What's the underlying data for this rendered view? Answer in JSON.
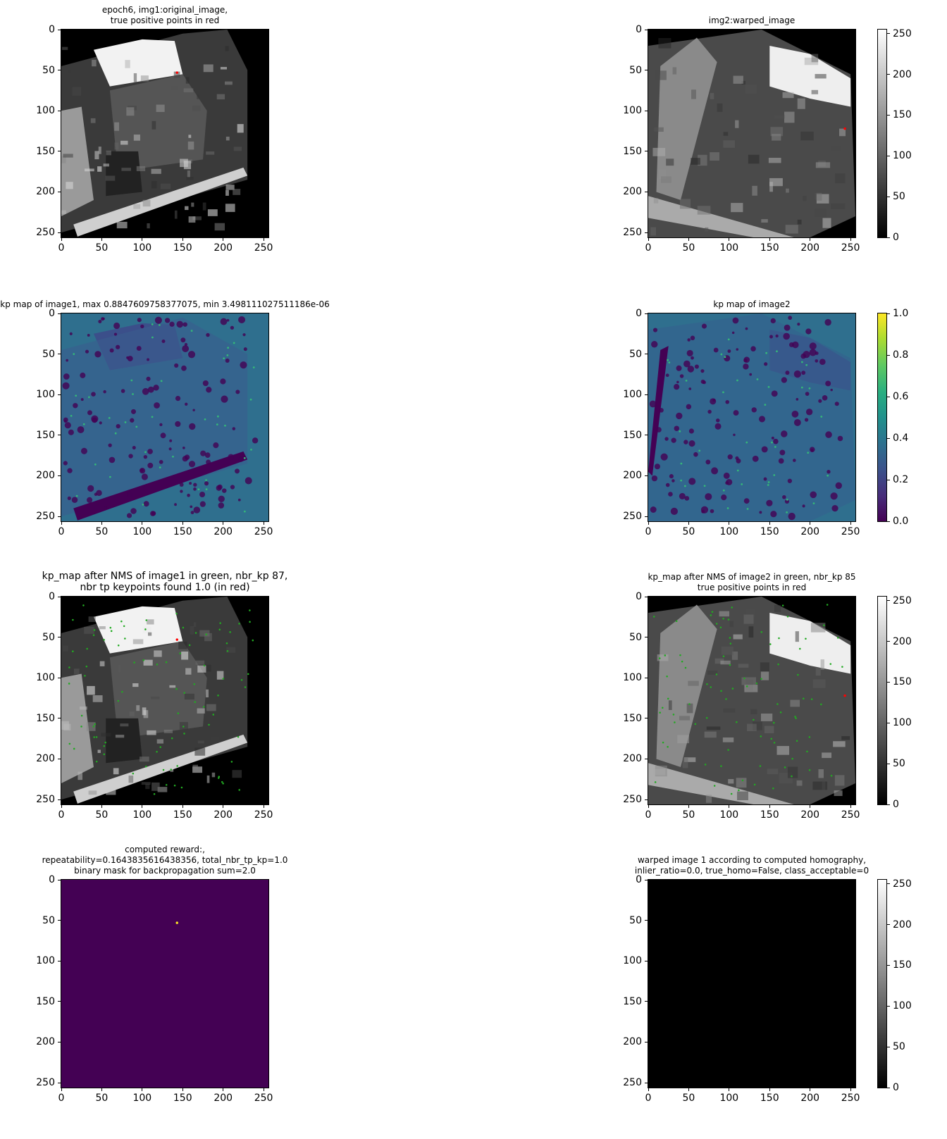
{
  "chart_data": [
    {
      "type": "heatmap",
      "title": "epoch6, img1:original_image,\n true positive points in red",
      "xticks": [
        "0",
        "50",
        "100",
        "150",
        "200",
        "250"
      ],
      "yticks": [
        "0",
        "50",
        "100",
        "150",
        "200",
        "250"
      ],
      "xlim": [
        0,
        256
      ],
      "ylim": [
        256,
        0
      ],
      "colormap": "gray",
      "points": [
        {
          "x": 143,
          "y": 53,
          "color": "#ff0000"
        }
      ]
    },
    {
      "type": "heatmap",
      "title": "img2:warped_image",
      "xticks": [
        "0",
        "50",
        "100",
        "150",
        "200",
        "250"
      ],
      "yticks": [
        "0",
        "50",
        "100",
        "150",
        "200",
        "250"
      ],
      "xlim": [
        0,
        256
      ],
      "ylim": [
        256,
        0
      ],
      "colormap": "gray",
      "colorbar": {
        "ticks": [
          "0",
          "50",
          "100",
          "150",
          "200",
          "250"
        ],
        "range": [
          0,
          255
        ]
      },
      "points": [
        {
          "x": 243,
          "y": 122,
          "color": "#ff0000"
        }
      ]
    },
    {
      "type": "heatmap",
      "title": "kp map of image1, max 0.8847609758377075, min 3.498111027511186e-06",
      "xticks": [
        "0",
        "50",
        "100",
        "150",
        "200",
        "250"
      ],
      "yticks": [
        "0",
        "50",
        "100",
        "150",
        "200",
        "250"
      ],
      "xlim": [
        0,
        256
      ],
      "ylim": [
        256,
        0
      ],
      "colormap": "viridis"
    },
    {
      "type": "heatmap",
      "title": "kp map of image2",
      "xticks": [
        "0",
        "50",
        "100",
        "150",
        "200",
        "250"
      ],
      "yticks": [
        "0",
        "50",
        "100",
        "150",
        "200",
        "250"
      ],
      "xlim": [
        0,
        256
      ],
      "ylim": [
        256,
        0
      ],
      "colormap": "viridis",
      "colorbar": {
        "ticks": [
          "0.0",
          "0.2",
          "0.4",
          "0.6",
          "0.8",
          "1.0"
        ],
        "range": [
          0,
          1
        ]
      }
    },
    {
      "type": "heatmap",
      "title": "kp_map after NMS of image1 in green, nbr_kp 87,\nnbr tp keypoints found 1.0 (in red)",
      "xticks": [
        "0",
        "50",
        "100",
        "150",
        "200",
        "250"
      ],
      "yticks": [
        "0",
        "50",
        "100",
        "150",
        "200",
        "250"
      ],
      "xlim": [
        0,
        256
      ],
      "ylim": [
        256,
        0
      ],
      "colormap": "gray",
      "keypoint_count": 87,
      "points": [
        {
          "x": 143,
          "y": 53,
          "color": "#ff0000"
        }
      ]
    },
    {
      "type": "heatmap",
      "title": "kp_map after NMS of image2 in green, nbr_kp 85\ntrue positive points in red",
      "xticks": [
        "0",
        "50",
        "100",
        "150",
        "200",
        "250"
      ],
      "yticks": [
        "0",
        "50",
        "100",
        "150",
        "200",
        "250"
      ],
      "xlim": [
        0,
        256
      ],
      "ylim": [
        256,
        0
      ],
      "colormap": "gray",
      "colorbar": {
        "ticks": [
          "0",
          "50",
          "100",
          "150",
          "200",
          "250"
        ],
        "range": [
          0,
          255
        ]
      },
      "keypoint_count": 85,
      "points": [
        {
          "x": 243,
          "y": 122,
          "color": "#ff0000"
        }
      ]
    },
    {
      "type": "heatmap",
      "title": "computed reward:,\nrepeatability=0.1643835616438356, total_nbr_tp_kp=1.0\nbinary mask for backpropagation sum=2.0",
      "xticks": [
        "0",
        "50",
        "100",
        "150",
        "200",
        "250"
      ],
      "yticks": [
        "0",
        "50",
        "100",
        "150",
        "200",
        "250"
      ],
      "xlim": [
        0,
        256
      ],
      "ylim": [
        256,
        0
      ],
      "colormap": "viridis",
      "points": [
        {
          "x": 143,
          "y": 53,
          "color": "#fde725"
        }
      ]
    },
    {
      "type": "heatmap",
      "title": "warped image 1 according to computed homography,\ninlier_ratio=0.0, true_homo=False, class_acceptable=0",
      "xticks": [
        "0",
        "50",
        "100",
        "150",
        "200",
        "250"
      ],
      "yticks": [
        "0",
        "50",
        "100",
        "150",
        "200",
        "250"
      ],
      "xlim": [
        0,
        256
      ],
      "ylim": [
        256,
        0
      ],
      "colormap": "gray",
      "colorbar": {
        "ticks": [
          "0",
          "50",
          "100",
          "150",
          "200",
          "250"
        ],
        "range": [
          0,
          255
        ]
      }
    }
  ]
}
